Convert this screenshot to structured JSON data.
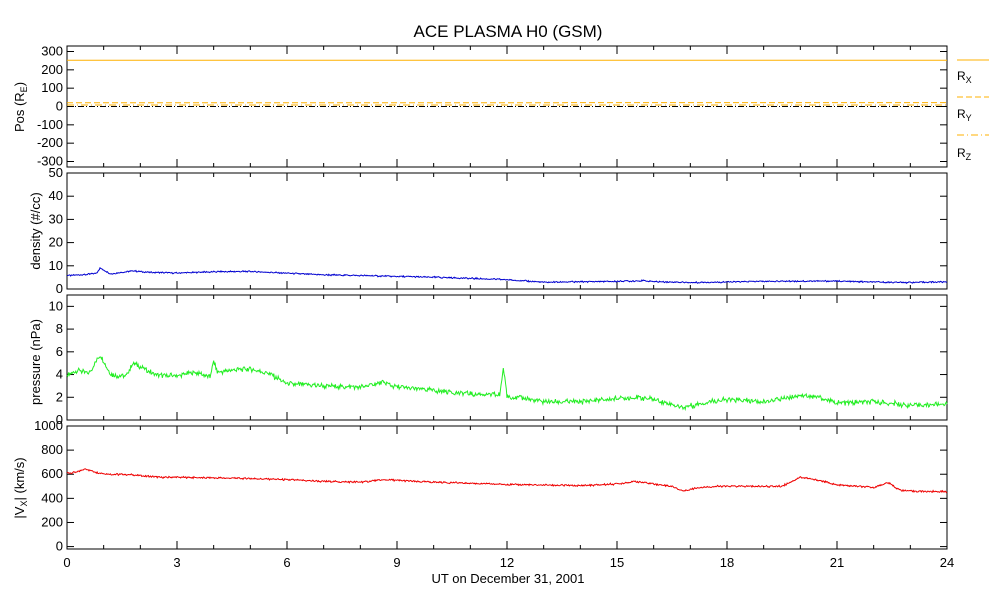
{
  "chart_data": {
    "type": "line",
    "title": "ACE PLASMA H0 (GSM)",
    "xlabel": "UT on December 31, 2001",
    "xlim": [
      0,
      24
    ],
    "xticks": [
      "0",
      "3",
      "6",
      "9",
      "12",
      "15",
      "18",
      "21",
      "24"
    ],
    "panels": [
      {
        "ylabel": "Pos (R",
        "ylabel_sub": "E",
        "ylabel_tail": ")",
        "ylim": [
          -330,
          330
        ],
        "yticks": [
          "300",
          "200",
          "100",
          "0",
          "-100",
          "-200",
          "-300"
        ],
        "legend": [
          "R",
          "R",
          "R"
        ],
        "legend_sub": [
          "X",
          "Y",
          "Z"
        ],
        "series": [
          {
            "name": "RX",
            "color": "#ffb000",
            "style": "solid",
            "x": [
              0,
              24
            ],
            "y": [
              252,
              252
            ]
          },
          {
            "name": "RY",
            "color": "#ffb000",
            "style": "dash",
            "x": [
              0,
              24
            ],
            "y": [
              20,
              21
            ]
          },
          {
            "name": "RZ",
            "color": "#ffb000",
            "style": "dashdot",
            "x": [
              0,
              24
            ],
            "y": [
              8,
              8
            ]
          }
        ]
      },
      {
        "ylabel": "density (#/cc)",
        "ylim": [
          0,
          50
        ],
        "yticks": [
          "50",
          "40",
          "30",
          "20",
          "10",
          "0"
        ],
        "series": [
          {
            "name": "density",
            "color": "#0000d0",
            "x": [
              0,
              0.5,
              0.8,
              0.9,
              1.2,
              1.8,
              2.2,
              3,
              4,
              5,
              6,
              7,
              8,
              9,
              10,
              11,
              12,
              13,
              14,
              15,
              15.7,
              16,
              17,
              18,
              19,
              20,
              21,
              22,
              23,
              24
            ],
            "y": [
              5.8,
              6.2,
              6.8,
              9,
              6.5,
              7.8,
              7.2,
              6.9,
              7.4,
              7.6,
              6.8,
              6.1,
              5.8,
              5.4,
              5.1,
              4.6,
              4.0,
              2.9,
              3.1,
              3.3,
              3.6,
              3.2,
              2.8,
              3.0,
              3.3,
              3.4,
              3.4,
              3.0,
              2.8,
              3.1
            ]
          }
        ]
      },
      {
        "ylabel": "pressure (nPa)",
        "ylim": [
          0,
          11
        ],
        "yticks": [
          "10",
          "8",
          "6",
          "4",
          "2",
          "0"
        ],
        "series": [
          {
            "name": "pressure",
            "color": "#22ee22",
            "x": [
              0,
              0.3,
              0.6,
              0.9,
              1.2,
              1.6,
              1.8,
              2.1,
              2.5,
              3,
              3.5,
              3.9,
              4.0,
              4.1,
              4.5,
              5,
              5.5,
              6,
              6.5,
              7,
              8,
              8.6,
              9,
              10,
              11,
              11.8,
              11.9,
              12,
              12.5,
              13,
              14,
              15,
              15.5,
              16,
              16.8,
              17.5,
              18,
              19,
              20,
              20.5,
              21,
              22,
              23,
              24
            ],
            "y": [
              3.9,
              4.4,
              4.1,
              5.7,
              4.0,
              3.8,
              5.0,
              4.5,
              3.9,
              3.9,
              4.2,
              3.8,
              5.2,
              4.2,
              4.4,
              4.5,
              4.1,
              3.2,
              3.1,
              3.0,
              2.9,
              3.3,
              2.9,
              2.6,
              2.3,
              2.2,
              4.6,
              2.1,
              1.9,
              1.6,
              1.6,
              1.9,
              2.0,
              1.8,
              1.1,
              1.6,
              1.8,
              1.6,
              2.2,
              2.0,
              1.5,
              1.6,
              1.3,
              1.4
            ]
          }
        ]
      },
      {
        "ylabel": "|V",
        "ylabel_sub": "X",
        "ylabel_tail": "| (km/s)",
        "ylim": [
          -20,
          1000
        ],
        "yticks": [
          "1000",
          "800",
          "600",
          "400",
          "200",
          "0"
        ],
        "series": [
          {
            "name": "|Vx|",
            "color": "#ee0000",
            "x": [
              0,
              0.3,
              0.5,
              0.8,
              1.2,
              1.8,
              2.5,
              3,
              4,
              5,
              6,
              7,
              8,
              8.7,
              9.5,
              10.5,
              11.5,
              12,
              13,
              14,
              15,
              15.5,
              16,
              16.5,
              16.8,
              17.2,
              17.8,
              18.5,
              19.5,
              20,
              20.5,
              21,
              22,
              22.4,
              22.7,
              23,
              24
            ],
            "y": [
              610,
              620,
              645,
              615,
              600,
              595,
              575,
              575,
              570,
              565,
              555,
              540,
              535,
              555,
              540,
              530,
              520,
              515,
              510,
              505,
              520,
              540,
              520,
              500,
              460,
              490,
              500,
              500,
              500,
              575,
              550,
              510,
              490,
              530,
              470,
              460,
              455
            ]
          }
        ]
      }
    ]
  }
}
